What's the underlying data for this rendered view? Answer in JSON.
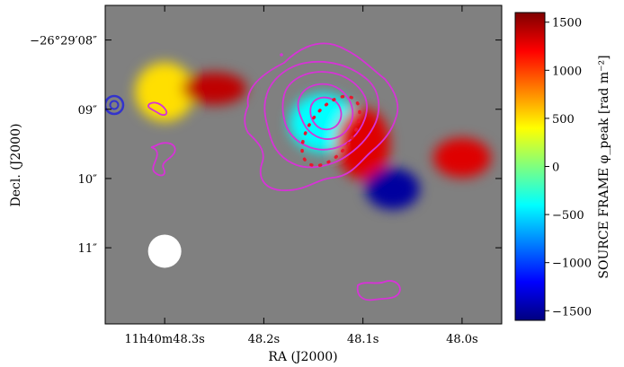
{
  "chart_data": {
    "type": "heatmap",
    "xlabel": "RA (J2000)",
    "ylabel": "Decl. (J2000)",
    "x_ticks": [
      "11h40m48.3s",
      "48.2s",
      "48.1s",
      "48.0s"
    ],
    "x_tick_values": [
      48.3,
      48.2,
      48.1,
      48.0
    ],
    "y_ticks": [
      "−26°29′08″",
      "09″",
      "10″",
      "11″"
    ],
    "y_tick_values": [
      8,
      9,
      10,
      11
    ],
    "xlim": [
      48.36,
      47.96
    ],
    "ylim": [
      12.1,
      7.5
    ],
    "colorbar": {
      "label": "SOURCE FRAME φ_peak [rad m⁻²]",
      "ticks": [
        "1500",
        "1000",
        "500",
        "0",
        "−500",
        "−1000",
        "−1500"
      ],
      "tick_values": [
        1500,
        1000,
        500,
        0,
        -500,
        -1000,
        -1500
      ],
      "range": [
        -1600,
        1600
      ],
      "colormap": "jet"
    },
    "regions": [
      {
        "label": "northeast blob",
        "ra": 48.3,
        "dec": 8.75,
        "phi": 500
      },
      {
        "label": "bridge",
        "ra": 48.25,
        "dec": 8.7,
        "phi": 1400
      },
      {
        "label": "central blob",
        "ra": 48.14,
        "dec": 9.2,
        "phi": -400
      },
      {
        "label": "south-west lobe",
        "ra": 48.1,
        "dec": 9.5,
        "phi": 1300
      },
      {
        "label": "southern blob",
        "ra": 48.07,
        "dec": 10.15,
        "phi": -1500
      },
      {
        "label": "western tail",
        "ra": 48.0,
        "dec": 9.7,
        "phi": 1300
      }
    ],
    "beam": {
      "ra": 48.3,
      "dec": 11.05
    },
    "colors": {
      "background": "#808080",
      "contour": "#d633d6",
      "ellipse": "#e6192e",
      "ring": "#3333cc",
      "beam": "#ffffff"
    }
  }
}
